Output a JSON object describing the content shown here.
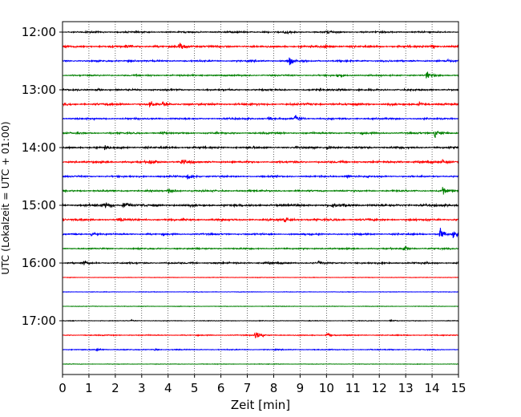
{
  "chart_data": {
    "type": "line",
    "title": "",
    "xlabel": "Zeit  [min]",
    "ylabel": "UTC (Lokalzeit = UTC + 01:00)",
    "xlim": [
      0,
      15
    ],
    "x_ticks": [
      "0",
      "1",
      "2",
      "3",
      "4",
      "5",
      "6",
      "7",
      "8",
      "9",
      "10",
      "11",
      "12",
      "13",
      "14",
      "15"
    ],
    "y_ticks": [
      "12:00",
      "13:00",
      "14:00",
      "15:00",
      "16:00",
      "17:00"
    ],
    "grid": "vertical dotted lines at each minute",
    "trace_interval_min": 15,
    "trace_colors": [
      "#000000",
      "#ff0000",
      "#0000ff",
      "#008000"
    ],
    "traces": [
      {
        "start": "12:00",
        "color": "#000000",
        "noise": 0.9,
        "events": [
          {
            "t": 8.4,
            "amp": 5
          },
          {
            "t": 10.0,
            "amp": 5
          }
        ]
      },
      {
        "start": "12:15",
        "color": "#ff0000",
        "noise": 1.2,
        "events": [
          {
            "t": 2.4,
            "amp": 5
          },
          {
            "t": 4.4,
            "amp": 9
          },
          {
            "t": 9.9,
            "amp": 5
          },
          {
            "t": 14.0,
            "amp": 4
          }
        ]
      },
      {
        "start": "12:30",
        "color": "#0000ff",
        "noise": 1.0,
        "events": [
          {
            "t": 2.5,
            "amp": 3
          },
          {
            "t": 8.6,
            "amp": 9
          },
          {
            "t": 14.5,
            "amp": 3
          }
        ]
      },
      {
        "start": "12:45",
        "color": "#008000",
        "noise": 0.9,
        "events": [
          {
            "t": 10.4,
            "amp": 5
          },
          {
            "t": 13.8,
            "amp": 8
          }
        ]
      },
      {
        "start": "13:00",
        "color": "#000000",
        "noise": 1.0,
        "events": [
          {
            "t": 1.3,
            "amp": 4
          },
          {
            "t": 10.4,
            "amp": 4
          }
        ]
      },
      {
        "start": "13:15",
        "color": "#ff0000",
        "noise": 1.3,
        "events": [
          {
            "t": 3.3,
            "amp": 7
          },
          {
            "t": 3.8,
            "amp": 5
          },
          {
            "t": 13.5,
            "amp": 5
          }
        ]
      },
      {
        "start": "13:30",
        "color": "#0000ff",
        "noise": 1.0,
        "events": [
          {
            "t": 7.8,
            "amp": 3
          },
          {
            "t": 8.8,
            "amp": 8
          }
        ]
      },
      {
        "start": "13:45",
        "color": "#008000",
        "noise": 1.0,
        "events": [
          {
            "t": 3.7,
            "amp": 3
          },
          {
            "t": 14.1,
            "amp": 8
          }
        ]
      },
      {
        "start": "14:00",
        "color": "#000000",
        "noise": 1.2,
        "events": [
          {
            "t": 1.6,
            "amp": 4
          },
          {
            "t": 10.0,
            "amp": 4
          }
        ]
      },
      {
        "start": "14:15",
        "color": "#ff0000",
        "noise": 1.2,
        "events": [
          {
            "t": 3.3,
            "amp": 6
          },
          {
            "t": 4.5,
            "amp": 7
          },
          {
            "t": 14.4,
            "amp": 4
          }
        ]
      },
      {
        "start": "14:30",
        "color": "#0000ff",
        "noise": 1.0,
        "events": [
          {
            "t": 4.7,
            "amp": 7
          },
          {
            "t": 10.7,
            "amp": 4
          }
        ]
      },
      {
        "start": "14:45",
        "color": "#008000",
        "noise": 1.0,
        "events": [
          {
            "t": 4.0,
            "amp": 7
          },
          {
            "t": 14.4,
            "amp": 8
          }
        ]
      },
      {
        "start": "15:00",
        "color": "#000000",
        "noise": 1.4,
        "events": [
          {
            "t": 1.6,
            "amp": 9
          },
          {
            "t": 2.3,
            "amp": 7
          },
          {
            "t": 10.2,
            "amp": 6
          }
        ]
      },
      {
        "start": "15:15",
        "color": "#ff0000",
        "noise": 1.2,
        "events": [
          {
            "t": 2.1,
            "amp": 6
          },
          {
            "t": 8.4,
            "amp": 7
          }
        ]
      },
      {
        "start": "15:30",
        "color": "#0000ff",
        "noise": 1.0,
        "events": [
          {
            "t": 1.1,
            "amp": 4
          },
          {
            "t": 14.3,
            "amp": 10
          },
          {
            "t": 14.8,
            "amp": 9
          }
        ]
      },
      {
        "start": "15:45",
        "color": "#008000",
        "noise": 0.9,
        "events": [
          {
            "t": 12.9,
            "amp": 5
          }
        ]
      },
      {
        "start": "16:00",
        "color": "#000000",
        "noise": 1.0,
        "events": [
          {
            "t": 0.8,
            "amp": 3
          },
          {
            "t": 9.7,
            "amp": 3
          }
        ]
      },
      {
        "start": "16:15",
        "color": "#ff0000",
        "noise": 0.35,
        "events": []
      },
      {
        "start": "16:30",
        "color": "#0000ff",
        "noise": 0.35,
        "events": []
      },
      {
        "start": "16:45",
        "color": "#008000",
        "noise": 0.35,
        "events": []
      },
      {
        "start": "17:00",
        "color": "#000000",
        "noise": 0.4,
        "events": [
          {
            "t": 2.6,
            "amp": 2
          },
          {
            "t": 12.4,
            "amp": 2
          }
        ]
      },
      {
        "start": "17:15",
        "color": "#ff0000",
        "noise": 0.6,
        "events": [
          {
            "t": 7.3,
            "amp": 9
          },
          {
            "t": 10.0,
            "amp": 4
          }
        ]
      },
      {
        "start": "17:30",
        "color": "#0000ff",
        "noise": 0.6,
        "events": [
          {
            "t": 1.3,
            "amp": 3
          },
          {
            "t": 3.5,
            "amp": 2
          }
        ]
      },
      {
        "start": "17:45",
        "color": "#008000",
        "noise": 0.35,
        "events": []
      }
    ]
  }
}
